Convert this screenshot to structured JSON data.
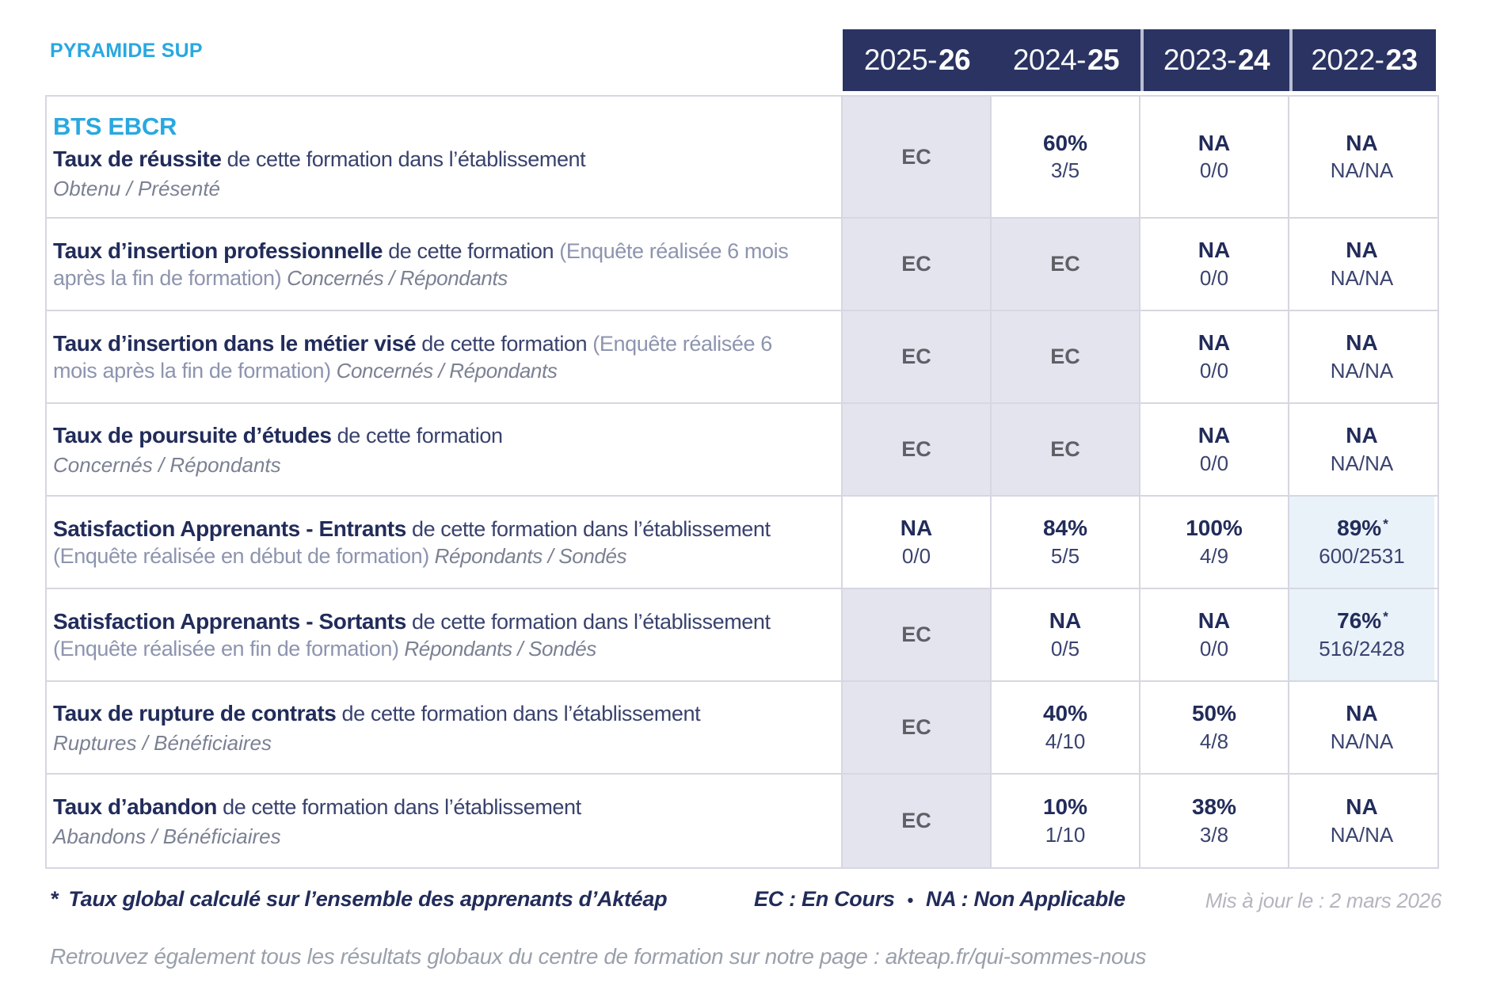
{
  "brand": "PYRAMIDE SUP",
  "table": {
    "program": "BTS EBCR",
    "columns": [
      {
        "prefix": "2025-",
        "suffix": "26"
      },
      {
        "prefix": "2024-",
        "suffix": "25"
      },
      {
        "prefix": "2023-",
        "suffix": "24"
      },
      {
        "prefix": "2022-",
        "suffix": "23"
      }
    ],
    "rows": [
      {
        "title": "Taux de réussite",
        "desc": "de cette formation dans l’établissement",
        "paren": "",
        "sub": "Obtenu / Présenté",
        "sub_inline": false,
        "cells": [
          {
            "kind": "ec",
            "text": "EC"
          },
          {
            "kind": "val",
            "main": "60%",
            "sub": "3/5"
          },
          {
            "kind": "val",
            "main": "NA",
            "sub": "0/0"
          },
          {
            "kind": "val",
            "main": "NA",
            "sub": "NA/NA"
          }
        ]
      },
      {
        "title": "Taux d’insertion professionnelle",
        "desc": "de cette formation",
        "paren": "(Enquête réalisée 6 mois après la fin de formation)",
        "sub": "Concernés / Répondants",
        "sub_inline": true,
        "cells": [
          {
            "kind": "ec",
            "text": "EC"
          },
          {
            "kind": "ec",
            "text": "EC"
          },
          {
            "kind": "val",
            "main": "NA",
            "sub": "0/0"
          },
          {
            "kind": "val",
            "main": "NA",
            "sub": "NA/NA"
          }
        ]
      },
      {
        "title": "Taux d’insertion dans le métier visé",
        "desc": "de cette formation",
        "paren": "(Enquête réalisée 6 mois après la fin de formation)",
        "sub": "Concernés / Répondants",
        "sub_inline": true,
        "cells": [
          {
            "kind": "ec",
            "text": "EC"
          },
          {
            "kind": "ec",
            "text": "EC"
          },
          {
            "kind": "val",
            "main": "NA",
            "sub": "0/0"
          },
          {
            "kind": "val",
            "main": "NA",
            "sub": "NA/NA"
          }
        ]
      },
      {
        "title": "Taux de poursuite d’études",
        "desc": "de cette formation",
        "paren": "",
        "sub": "Concernés / Répondants",
        "sub_inline": false,
        "cells": [
          {
            "kind": "ec",
            "text": "EC"
          },
          {
            "kind": "ec",
            "text": "EC"
          },
          {
            "kind": "val",
            "main": "NA",
            "sub": "0/0"
          },
          {
            "kind": "val",
            "main": "NA",
            "sub": "NA/NA"
          }
        ]
      },
      {
        "title": "Satisfaction Apprenants - Entrants",
        "desc": "de cette formation dans l’établissement",
        "paren": "(Enquête réalisée en début de formation)",
        "sub": "Répondants / Sondés",
        "sub_inline": true,
        "cells": [
          {
            "kind": "val",
            "main": "NA",
            "sub": "0/0"
          },
          {
            "kind": "val",
            "main": "84%",
            "sub": "5/5"
          },
          {
            "kind": "val",
            "main": "100%",
            "sub": "4/9"
          },
          {
            "kind": "val",
            "main": "89%",
            "star": true,
            "sub": "600/2531",
            "bg": "blue"
          }
        ]
      },
      {
        "title": "Satisfaction Apprenants - Sortants",
        "desc": "de cette formation dans l’établissement",
        "paren": "(Enquête réalisée en fin de formation)",
        "sub": "Répondants / Sondés",
        "sub_inline": true,
        "cells": [
          {
            "kind": "ec",
            "text": "EC"
          },
          {
            "kind": "val",
            "main": "NA",
            "sub": "0/5"
          },
          {
            "kind": "val",
            "main": "NA",
            "sub": "0/0"
          },
          {
            "kind": "val",
            "main": "76%",
            "star": true,
            "sub": "516/2428",
            "bg": "blue"
          }
        ]
      },
      {
        "title": "Taux de rupture de contrats",
        "desc": "de cette formation dans l’établissement",
        "paren": "",
        "sub": "Ruptures / Bénéficiaires",
        "sub_inline": false,
        "cells": [
          {
            "kind": "ec",
            "text": "EC"
          },
          {
            "kind": "val",
            "main": "40%",
            "sub": "4/10"
          },
          {
            "kind": "val",
            "main": "50%",
            "sub": "4/8"
          },
          {
            "kind": "val",
            "main": "NA",
            "sub": "NA/NA"
          }
        ]
      },
      {
        "title": "Taux d’abandon",
        "desc": "de cette formation dans l’établissement",
        "paren": "",
        "sub": "Abandons / Bénéficiaires",
        "sub_inline": false,
        "cells": [
          {
            "kind": "ec",
            "text": "EC"
          },
          {
            "kind": "val",
            "main": "10%",
            "sub": "1/10"
          },
          {
            "kind": "val",
            "main": "38%",
            "sub": "3/8"
          },
          {
            "kind": "val",
            "main": "NA",
            "sub": "NA/NA"
          }
        ]
      }
    ]
  },
  "footer": {
    "note_star": "*",
    "note": "Taux global calculé sur l’ensemble des apprenants d’Aktéap",
    "legend_ec": "EC : En Cours",
    "legend_sep": "•",
    "legend_na": "NA : Non Applicable",
    "updated": "Mis à jour le : 2 mars 2026",
    "info": "Retrouvez également tous les résultats globaux du centre de formation sur notre page : akteap.fr/qui-sommes-nous"
  },
  "colors": {
    "accent_cyan": "#29a8e0",
    "header_navy": "#2a3361",
    "text_navy": "#222c5a",
    "ec_cell_bg": "#e4e4ee",
    "global_rate_cell_bg": "#e9f2f9",
    "border": "#d6d7e2"
  }
}
